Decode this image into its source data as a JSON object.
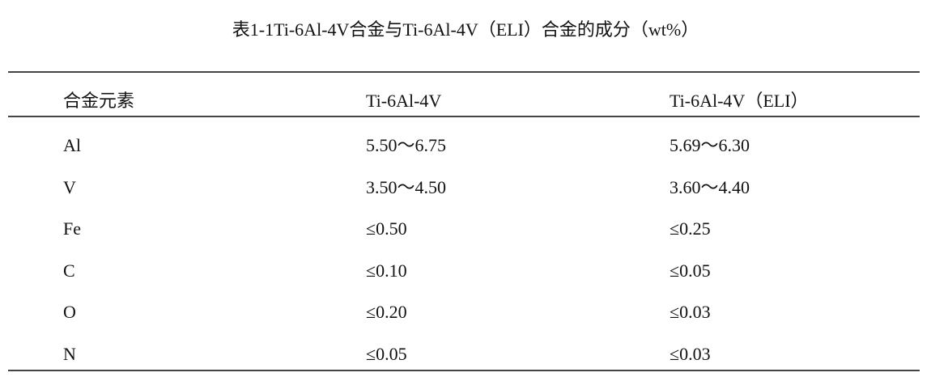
{
  "title": "表1-1Ti-6Al-4V合金与Ti-6Al-4V（ELI）合金的成分（wt%）",
  "table": {
    "headers": [
      "合金元素",
      "Ti-6Al-4V",
      "Ti-6Al-4V（ELI）"
    ],
    "rows": [
      [
        "Al",
        "5.50～6.75",
        "5.69～6.30"
      ],
      [
        "V",
        "3.50～4.50",
        "3.60～4.40"
      ],
      [
        "Fe",
        "≤0.50",
        "≤0.25"
      ],
      [
        "C",
        "≤0.10",
        "≤0.05"
      ],
      [
        "O",
        "≤0.20",
        "≤0.03"
      ],
      [
        "N",
        "≤0.05",
        "≤0.03"
      ]
    ]
  }
}
